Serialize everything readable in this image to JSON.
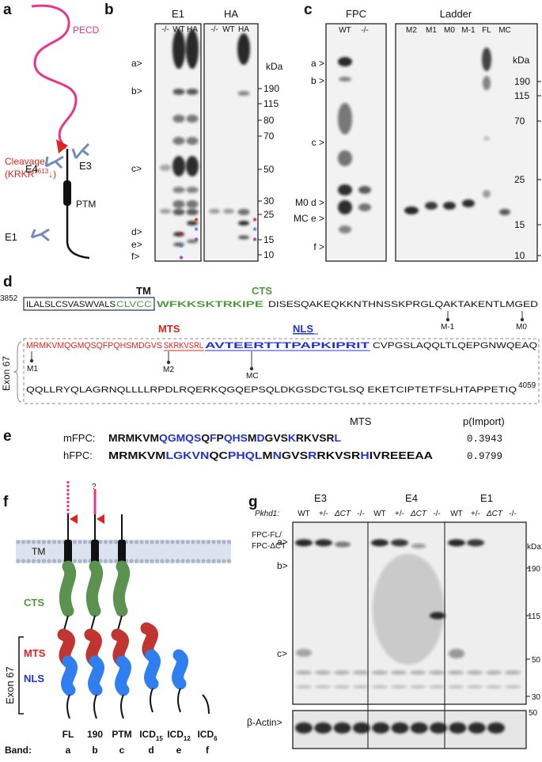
{
  "a": {
    "label": "a",
    "pecd": "PECD",
    "cleavage": "Cleavage",
    "site_open": "(KRKR",
    "site_number": "3613",
    "site_close": "↓)",
    "e4": "E4",
    "e3": "E3",
    "ptm": "PTM",
    "e1": "E1"
  },
  "b": {
    "label": "b",
    "blots": [
      {
        "title": "E1",
        "lanes": [
          "-/-",
          "WT",
          "HA"
        ]
      },
      {
        "title": "HA",
        "lanes": [
          "-/-",
          "WT",
          "HA"
        ]
      }
    ],
    "bands": [
      "a>",
      "b>",
      "c>",
      "d>",
      "e>",
      "f>"
    ],
    "kda": "kDa",
    "markers": [
      "190",
      "115",
      "80",
      "70",
      "50",
      "30",
      "25",
      "15",
      "10"
    ],
    "asterisk": "*"
  },
  "c": {
    "label": "c",
    "blots": [
      {
        "title": "FPC",
        "lanes": [
          "WT",
          "-/-"
        ]
      },
      {
        "title": "Ladder",
        "lanes": [
          "M2",
          "M1",
          "M0",
          "M-1",
          "FL",
          "MC"
        ]
      }
    ],
    "bands": [
      "a >",
      "b >",
      "c >",
      "M0 d >",
      "MC e >",
      "f >"
    ],
    "kda": "kDa",
    "markers": [
      "190",
      "115",
      "70",
      "25",
      "15",
      "10"
    ]
  },
  "d": {
    "label": "d",
    "start": "3852",
    "tm": "TM",
    "cts": "CTS",
    "mts": "MTS",
    "nls": "NLS",
    "exon": "Exon 67",
    "end": "4059",
    "line1": [
      "ILALSLCSVASWVALS",
      "CLVCC",
      "WFKKSKTRKIPE",
      "DISESQAKEQKKNTHNSSKPRGLQAKTAKENTLMGED"
    ],
    "line2": [
      "MRMKVMQGMQSQFPQHSMDGVS",
      "SKRKVSRL",
      "AVTEERTTTPAPKIPRIT",
      "CVPGSLAQQLTLQEPGNWQEAQ"
    ],
    "line3": "QQLLRYQLAGRNQLLLLRPDLRQERKQGQEPSQLDKGSDCTGLSQ EKETCIPTETFSLHTAPPETIQ",
    "sites": [
      "M-1",
      "M0",
      "M1",
      "M2",
      "MC"
    ]
  },
  "e": {
    "label": "e",
    "title": "MTS",
    "score_header": "p(Import)",
    "rows": [
      {
        "name": "mFPC:",
        "sequence": [
          "MRMKVM",
          "QGMQS",
          "Q",
          "F",
          "P",
          "QHS",
          "M",
          "D",
          "GVS",
          "K",
          "RKVSR",
          "L"
        ],
        "score": "0.3943"
      },
      {
        "name": "hFPC:",
        "sequence": [
          "MRMKVM",
          "LGKVN",
          "QC",
          "PHQL",
          "M",
          "N",
          "GVS",
          "R",
          "RKVSR",
          "H",
          "IVREEEAA"
        ],
        "score": "0.9799"
      }
    ]
  },
  "f": {
    "label": "f",
    "unknown": "?",
    "tm": "TM",
    "cts": "CTS",
    "mts": "MTS",
    "nls": "NLS",
    "exon": "Exon 67",
    "band_header": "Band:",
    "forms": [
      {
        "name": "FL"
      },
      {
        "name": "190"
      },
      {
        "name": "PTM"
      },
      {
        "name": "ICD",
        "sub": "15"
      },
      {
        "name": "ICD",
        "sub": "12"
      },
      {
        "name": "ICD",
        "sub": "6"
      }
    ],
    "bands": [
      "a",
      "b",
      "c",
      "d",
      "e",
      "f"
    ]
  },
  "g": {
    "label": "g",
    "genotype_label": "Pkhd1:",
    "groups": [
      {
        "title": "E3",
        "lanes": [
          "WT",
          "+/-",
          "ΔCT",
          "-/-"
        ]
      },
      {
        "title": "E4",
        "lanes": [
          "WT",
          "+/-",
          "ΔCT",
          "-/-"
        ]
      },
      {
        "title": "E1",
        "lanes": [
          "WT",
          "+/-",
          "ΔCT",
          "-/-"
        ]
      }
    ],
    "fl_label": "FPC-FL/",
    "ct_label": "FPC-ΔCT",
    "bands": [
      "a>",
      "b>",
      "c>"
    ],
    "kda": "kDa:",
    "markers": [
      "190",
      "115",
      "50",
      "30"
    ],
    "actin": "β-Actin>",
    "actin_marker": "50"
  }
}
